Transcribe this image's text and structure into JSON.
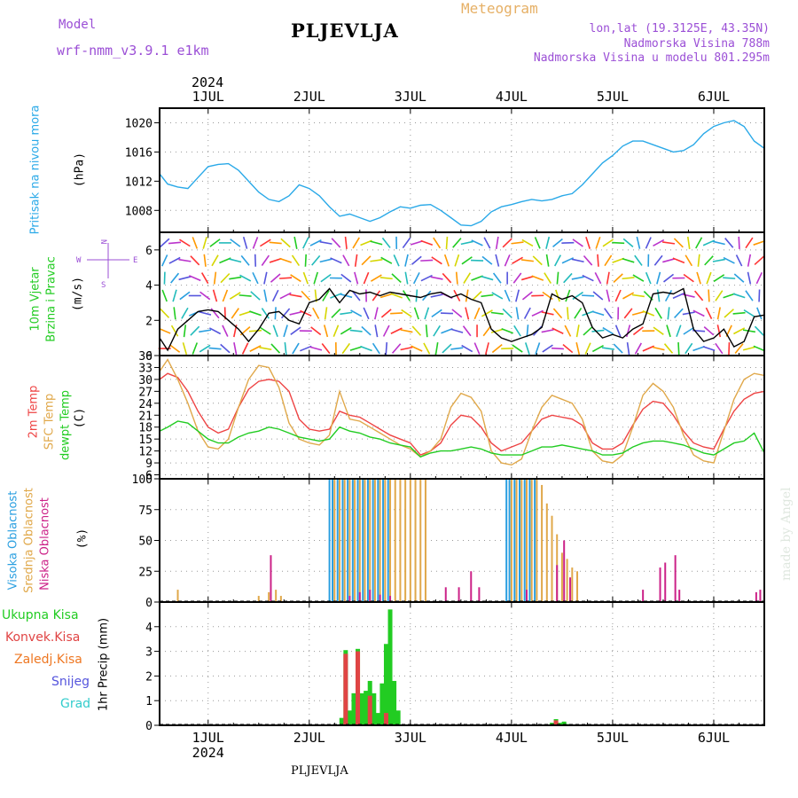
{
  "header": {
    "model_label": "Model",
    "model_name": "wrf-nmm_v3.9.1 e1km",
    "title": "PLJEVLJA",
    "meteogram": "Meteogram",
    "lonlat": "lon,lat (19.3125E, 43.35N)",
    "altitude": "Nadmorska Visina 788m",
    "model_altitude": "Nadmorska Visina u modelu 801.295m",
    "year": "2024",
    "footer": "PLJEVLJA",
    "made_by": "made by Angel"
  },
  "colors": {
    "pressure": "#2aa9e8",
    "wind_line": "#000000",
    "temp2m": "#ee4444",
    "sfc_temp": "#e0a84a",
    "dewpt": "#22cc22",
    "high_cloud": "#2a9fe0",
    "mid_cloud": "#e0a84a",
    "low_cloud": "#cc2288",
    "total_precip": "#22cc22",
    "conv_precip": "#e04444",
    "frozen_precip": "#ee7722",
    "snow": "#5555dd",
    "hail": "#33cccc"
  },
  "panel_labels": {
    "pressure": [
      "Pritisak na nivou mora",
      "(hPa)"
    ],
    "wind": [
      "10m Vjetar",
      "Brzina i Pravac",
      "(m/s)"
    ],
    "wind_compass": [
      "N",
      "W",
      "E",
      "S"
    ],
    "temp": [
      "2m Temp",
      "SFC Temp",
      "dewpt Temp",
      "(C)"
    ],
    "cloud": [
      "Visoka Oblacnost",
      "Srednja Oblacnost",
      "Niska Oblacnost",
      "(%)"
    ],
    "precip": [
      "Ukupna Kisa",
      "Konvek.Kisa",
      "Zaledj.Kisa",
      "Snijeg",
      "Grad",
      "1hr Precip (mm)"
    ]
  },
  "chart_data": [
    {
      "type": "line",
      "name": "pressure",
      "x_labels": [
        "1JUL",
        "2JUL",
        "3JUL",
        "4JUL",
        "5JUL",
        "6JUL"
      ],
      "x_range": [
        0.52,
        6.5
      ],
      "ylim": [
        1005,
        1022
      ],
      "yticks": [
        1008,
        1012,
        1016,
        1020
      ],
      "series": [
        {
          "name": "Pritisak na nivou mora",
          "x": [
            0.52,
            0.6,
            0.7,
            0.8,
            0.9,
            1.0,
            1.1,
            1.2,
            1.3,
            1.4,
            1.5,
            1.6,
            1.7,
            1.8,
            1.9,
            2.0,
            2.1,
            2.2,
            2.3,
            2.4,
            2.5,
            2.6,
            2.7,
            2.8,
            2.9,
            3.0,
            3.1,
            3.2,
            3.3,
            3.4,
            3.5,
            3.6,
            3.7,
            3.8,
            3.9,
            4.0,
            4.1,
            4.2,
            4.3,
            4.4,
            4.5,
            4.6,
            4.7,
            4.8,
            4.9,
            5.0,
            5.1,
            5.2,
            5.3,
            5.4,
            5.5,
            5.6,
            5.7,
            5.8,
            5.9,
            6.0,
            6.1,
            6.2,
            6.3,
            6.4,
            6.5
          ],
          "y": [
            1013.0,
            1011.6,
            1011.2,
            1011.0,
            1012.5,
            1014.0,
            1014.3,
            1014.4,
            1013.5,
            1012.0,
            1010.5,
            1009.5,
            1009.2,
            1010.0,
            1011.5,
            1011.0,
            1010.0,
            1008.5,
            1007.2,
            1007.5,
            1007.0,
            1006.5,
            1007.0,
            1007.8,
            1008.5,
            1008.3,
            1008.7,
            1008.8,
            1008.0,
            1007.0,
            1006.0,
            1005.9,
            1006.5,
            1007.8,
            1008.5,
            1008.8,
            1009.2,
            1009.5,
            1009.3,
            1009.5,
            1010.0,
            1010.3,
            1011.5,
            1013.0,
            1014.5,
            1015.5,
            1016.8,
            1017.5,
            1017.5,
            1017.0,
            1016.5,
            1016.0,
            1016.2,
            1017.0,
            1018.5,
            1019.5,
            1020.0,
            1020.3,
            1019.5,
            1017.5,
            1016.5
          ]
        }
      ]
    },
    {
      "type": "line",
      "name": "wind",
      "ylim": [
        0,
        7
      ],
      "yticks": [
        0,
        2,
        4,
        6
      ],
      "x_range": [
        0.52,
        6.5
      ],
      "series": [
        {
          "name": "10m Vjetar",
          "x": [
            0.52,
            0.6,
            0.7,
            0.8,
            0.9,
            1.0,
            1.1,
            1.2,
            1.3,
            1.4,
            1.5,
            1.6,
            1.7,
            1.8,
            1.9,
            2.0,
            2.1,
            2.2,
            2.3,
            2.4,
            2.5,
            2.6,
            2.7,
            2.8,
            2.9,
            3.0,
            3.1,
            3.2,
            3.3,
            3.4,
            3.5,
            3.6,
            3.7,
            3.8,
            3.9,
            4.0,
            4.1,
            4.2,
            4.3,
            4.4,
            4.5,
            4.6,
            4.7,
            4.8,
            4.9,
            5.0,
            5.1,
            5.2,
            5.3,
            5.4,
            5.5,
            5.6,
            5.7,
            5.8,
            5.9,
            6.0,
            6.1,
            6.2,
            6.3,
            6.4,
            6.5
          ],
          "y": [
            1.0,
            0.3,
            1.5,
            2.0,
            2.5,
            2.6,
            2.5,
            2.0,
            1.5,
            0.8,
            1.5,
            2.4,
            2.5,
            2.0,
            1.8,
            3.0,
            3.2,
            3.8,
            3.0,
            3.7,
            3.5,
            3.6,
            3.4,
            3.6,
            3.5,
            3.4,
            3.3,
            3.5,
            3.6,
            3.3,
            3.5,
            3.2,
            3.0,
            1.5,
            1.0,
            0.8,
            1.0,
            1.2,
            1.6,
            3.5,
            3.2,
            3.4,
            3.0,
            1.6,
            1.0,
            1.2,
            1.0,
            1.5,
            1.8,
            3.5,
            3.6,
            3.5,
            3.8,
            1.5,
            0.8,
            1.0,
            1.5,
            0.5,
            0.8,
            2.2,
            2.3
          ]
        }
      ]
    },
    {
      "type": "line",
      "name": "temperature",
      "ylim": [
        5,
        36
      ],
      "yticks": [
        6,
        9,
        12,
        15,
        18,
        21,
        24,
        27,
        30,
        33,
        36
      ],
      "x_range": [
        0.52,
        6.5
      ],
      "series": [
        {
          "name": "2m Temp",
          "x": [
            0.52,
            0.6,
            0.7,
            0.8,
            0.9,
            1.0,
            1.1,
            1.2,
            1.3,
            1.4,
            1.5,
            1.6,
            1.7,
            1.8,
            1.9,
            2.0,
            2.1,
            2.2,
            2.3,
            2.4,
            2.5,
            2.6,
            2.7,
            2.8,
            2.9,
            3.0,
            3.1,
            3.2,
            3.3,
            3.4,
            3.5,
            3.6,
            3.7,
            3.8,
            3.9,
            4.0,
            4.1,
            4.2,
            4.3,
            4.4,
            4.5,
            4.6,
            4.7,
            4.8,
            4.9,
            5.0,
            5.1,
            5.2,
            5.3,
            5.4,
            5.5,
            5.6,
            5.7,
            5.8,
            5.9,
            6.0,
            6.1,
            6.2,
            6.3,
            6.4,
            6.5
          ],
          "y": [
            30.0,
            31.5,
            30.5,
            27.0,
            22.0,
            18.0,
            16.5,
            17.5,
            23.0,
            27.5,
            29.5,
            30.0,
            29.5,
            27.0,
            20.0,
            17.5,
            17.0,
            17.5,
            22.0,
            21.0,
            20.5,
            19.0,
            17.5,
            16.0,
            15.0,
            14.0,
            11.0,
            12.0,
            14.0,
            18.5,
            21.0,
            20.5,
            18.0,
            14.0,
            12.0,
            13.0,
            14.0,
            17.0,
            20.0,
            21.0,
            20.5,
            20.0,
            18.5,
            14.0,
            12.5,
            12.5,
            14.0,
            18.5,
            22.5,
            24.5,
            24.0,
            21.0,
            17.0,
            14.0,
            13.0,
            12.5,
            17.5,
            22.0,
            25.0,
            26.5,
            27.0
          ]
        },
        {
          "name": "SFC Temp",
          "x": [
            0.52,
            0.6,
            0.7,
            0.8,
            0.9,
            1.0,
            1.1,
            1.2,
            1.3,
            1.4,
            1.5,
            1.6,
            1.7,
            1.8,
            1.9,
            2.0,
            2.1,
            2.2,
            2.3,
            2.4,
            2.5,
            2.6,
            2.7,
            2.8,
            2.9,
            3.0,
            3.1,
            3.2,
            3.3,
            3.4,
            3.5,
            3.6,
            3.7,
            3.8,
            3.9,
            4.0,
            4.1,
            4.2,
            4.3,
            4.4,
            4.5,
            4.6,
            4.7,
            4.8,
            4.9,
            5.0,
            5.1,
            5.2,
            5.3,
            5.4,
            5.5,
            5.6,
            5.7,
            5.8,
            5.9,
            6.0,
            6.1,
            6.2,
            6.3,
            6.4,
            6.5
          ],
          "y": [
            32.0,
            35.0,
            30.0,
            24.0,
            17.0,
            13.0,
            12.5,
            15.0,
            23.0,
            30.0,
            33.5,
            33.0,
            28.0,
            19.0,
            15.0,
            14.0,
            13.5,
            16.0,
            27.0,
            20.0,
            19.5,
            18.0,
            16.5,
            15.0,
            13.5,
            12.5,
            10.5,
            12.0,
            15.0,
            23.0,
            26.5,
            25.5,
            22.0,
            12.0,
            9.0,
            8.5,
            10.0,
            17.0,
            23.0,
            26.0,
            25.0,
            24.0,
            20.0,
            12.0,
            9.5,
            9.0,
            11.0,
            18.0,
            26.0,
            29.0,
            27.0,
            23.0,
            16.0,
            11.0,
            9.5,
            9.0,
            17.0,
            25.0,
            30.0,
            31.5,
            31.0
          ]
        },
        {
          "name": "dewpt Temp",
          "x": [
            0.52,
            0.6,
            0.7,
            0.8,
            0.9,
            1.0,
            1.1,
            1.2,
            1.3,
            1.4,
            1.5,
            1.6,
            1.7,
            1.8,
            1.9,
            2.0,
            2.1,
            2.2,
            2.3,
            2.4,
            2.5,
            2.6,
            2.7,
            2.8,
            2.9,
            3.0,
            3.1,
            3.2,
            3.3,
            3.4,
            3.5,
            3.6,
            3.7,
            3.8,
            3.9,
            4.0,
            4.1,
            4.2,
            4.3,
            4.4,
            4.5,
            4.6,
            4.7,
            4.8,
            4.9,
            5.0,
            5.1,
            5.2,
            5.3,
            5.4,
            5.5,
            5.6,
            5.7,
            5.8,
            5.9,
            6.0,
            6.1,
            6.2,
            6.3,
            6.4,
            6.5
          ],
          "y": [
            17.0,
            18.0,
            19.5,
            19.0,
            17.0,
            15.0,
            14.0,
            14.0,
            15.5,
            16.5,
            17.0,
            18.0,
            17.5,
            16.5,
            15.5,
            15.0,
            14.5,
            15.0,
            18.0,
            17.0,
            16.5,
            15.5,
            15.0,
            14.0,
            13.5,
            13.0,
            10.5,
            11.5,
            12.0,
            12.0,
            12.5,
            13.0,
            12.5,
            11.5,
            11.0,
            11.0,
            11.0,
            12.0,
            13.0,
            13.0,
            13.5,
            13.0,
            12.5,
            12.0,
            11.0,
            11.0,
            11.5,
            13.0,
            14.0,
            14.5,
            14.5,
            14.0,
            13.5,
            12.5,
            11.5,
            11.0,
            12.5,
            14.0,
            14.5,
            16.5,
            11.5
          ]
        }
      ]
    },
    {
      "type": "bar",
      "name": "cloud",
      "ylim": [
        0,
        100
      ],
      "yticks": [
        0,
        25,
        50,
        75,
        100
      ],
      "x_range": [
        0.52,
        6.5
      ],
      "series": [
        {
          "name": "Visoka Oblacnost",
          "x": [
            2.2,
            2.23,
            2.28,
            2.33,
            2.38,
            2.43,
            2.48,
            2.53,
            2.58,
            2.63,
            2.68,
            2.73,
            2.78,
            3.95,
            3.98,
            4.03,
            4.08,
            4.13,
            4.18,
            4.23
          ],
          "values": [
            100,
            100,
            100,
            100,
            100,
            100,
            100,
            100,
            100,
            100,
            100,
            100,
            100,
            100,
            100,
            100,
            100,
            100,
            100,
            100
          ]
        },
        {
          "name": "Srednja Oblacnost",
          "x": [
            0.7,
            1.5,
            1.6,
            1.67,
            1.72,
            2.25,
            2.3,
            2.35,
            2.4,
            2.45,
            2.5,
            2.55,
            2.6,
            2.65,
            2.7,
            2.75,
            2.8,
            2.85,
            2.9,
            2.95,
            3.0,
            3.05,
            3.1,
            3.15,
            4.0,
            4.05,
            4.1,
            4.15,
            4.2,
            4.25,
            4.3,
            4.35,
            4.4,
            4.45,
            4.5,
            4.55,
            4.6,
            4.65
          ],
          "values": [
            10,
            5,
            8,
            10,
            5,
            100,
            100,
            100,
            100,
            100,
            100,
            100,
            100,
            100,
            100,
            100,
            100,
            100,
            100,
            100,
            100,
            100,
            100,
            100,
            100,
            100,
            100,
            100,
            100,
            100,
            95,
            80,
            70,
            55,
            40,
            35,
            28,
            25
          ]
        },
        {
          "name": "Niska Oblacnost",
          "x": [
            1.62,
            2.4,
            2.5,
            2.6,
            2.7,
            2.8,
            3.35,
            3.48,
            3.6,
            3.68,
            4.15,
            4.45,
            4.52,
            4.58,
            5.3,
            5.47,
            5.52,
            5.62,
            5.66,
            6.42,
            6.46
          ],
          "values": [
            38,
            5,
            8,
            10,
            6,
            5,
            12,
            12,
            25,
            12,
            10,
            30,
            50,
            20,
            10,
            28,
            32,
            38,
            10,
            8,
            10
          ]
        }
      ]
    },
    {
      "type": "bar",
      "name": "precip",
      "ylim": [
        0,
        5
      ],
      "yticks": [
        0,
        1,
        2,
        3,
        4
      ],
      "x_range": [
        0.52,
        6.5
      ],
      "x_labels": [
        "1JUL",
        "2JUL",
        "3JUL",
        "4JUL",
        "5JUL",
        "6JUL"
      ],
      "series": [
        {
          "name": "Ukupna Kisa",
          "x": [
            2.32,
            2.36,
            2.4,
            2.44,
            2.48,
            2.52,
            2.56,
            2.6,
            2.64,
            2.68,
            2.72,
            2.76,
            2.8,
            2.84,
            2.88,
            4.4,
            4.44,
            4.48,
            4.52,
            4.56
          ],
          "values": [
            0.3,
            3.05,
            0.6,
            1.3,
            3.1,
            1.3,
            1.4,
            1.8,
            1.3,
            0.5,
            1.7,
            3.3,
            4.7,
            1.8,
            0.6,
            0.1,
            0.25,
            0.1,
            0.15,
            0.05
          ]
        },
        {
          "name": "Konvek.Kisa",
          "x": [
            2.36,
            2.48,
            2.6,
            2.76,
            4.44
          ],
          "values": [
            2.9,
            3.0,
            1.2,
            0.5,
            0.2
          ]
        }
      ]
    }
  ]
}
